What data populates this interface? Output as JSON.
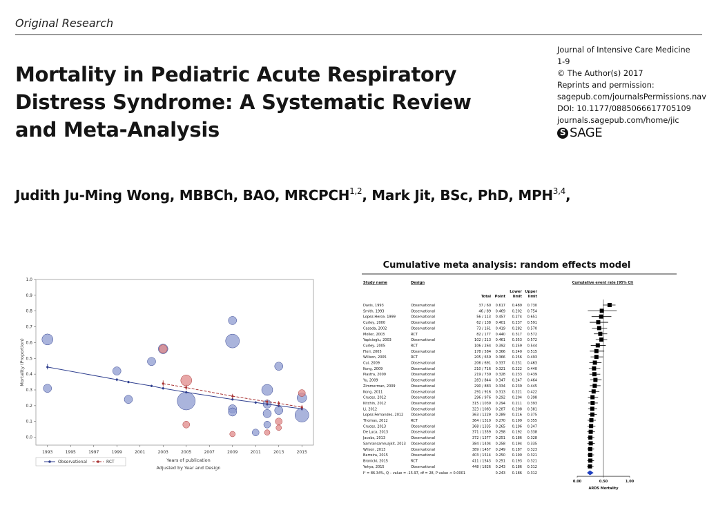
{
  "header": {
    "section_label": "Original Research",
    "title": "Mortality in Pediatric Acute Respiratory Distress Syndrome: A Systematic Review and Meta-Analysis"
  },
  "journal_info": {
    "lines": [
      "Journal of Intensive Care Medicine",
      "1-9",
      "© The Author(s) 2017",
      "Reprints and permission:",
      "sagepub.com/journalsPermissions.nav",
      "DOI: 10.1177/0885066617705109",
      "journals.sagepub.com/home/jic"
    ],
    "publisher": "SAGE"
  },
  "authors": {
    "author1_name": "Judith Ju-Ming Wong, MBBCh, BAO, MRCPCH",
    "author1_aff": "1,2",
    "sep1": ", ",
    "author2_name": "Mark Jit, BSc, PhD, MPH",
    "author2_aff": "3,4",
    "sep2": ","
  },
  "chart_data": [
    {
      "type": "scatter",
      "title": "",
      "xlabel": "Years of publication",
      "xlabel2": "Adjusted by Year and Design",
      "ylabel": "Mortality (Proportion)",
      "xlim": [
        1992,
        2016
      ],
      "ylim": [
        -0.05,
        1.0
      ],
      "x_ticks": [
        1993,
        1995,
        1997,
        1999,
        2001,
        2003,
        2005,
        2007,
        2009,
        2011,
        2013,
        2015
      ],
      "y_ticks": [
        0.0,
        0.1,
        0.2,
        0.3,
        0.4,
        0.5,
        0.6,
        0.7,
        0.8,
        0.9,
        1.0
      ],
      "legend": [
        "Observational",
        "RCT"
      ],
      "colors": {
        "observational": "#2f3f8f",
        "observational_fill": "#8e9bd0",
        "rct": "#a83232",
        "rct_fill": "#e08a8a"
      },
      "observational_points": [
        {
          "x": 1993,
          "y": 0.62,
          "size": 8
        },
        {
          "x": 1993,
          "y": 0.31,
          "size": 6
        },
        {
          "x": 1999,
          "y": 0.42,
          "size": 6
        },
        {
          "x": 2000,
          "y": 0.24,
          "size": 6
        },
        {
          "x": 2002,
          "y": 0.48,
          "size": 6
        },
        {
          "x": 2003,
          "y": 0.56,
          "size": 7
        },
        {
          "x": 2005,
          "y": 0.23,
          "size": 13
        },
        {
          "x": 2009,
          "y": 0.74,
          "size": 6
        },
        {
          "x": 2009,
          "y": 0.61,
          "size": 10
        },
        {
          "x": 2009,
          "y": 0.18,
          "size": 6
        },
        {
          "x": 2009,
          "y": 0.16,
          "size": 6
        },
        {
          "x": 2011,
          "y": 0.03,
          "size": 5
        },
        {
          "x": 2012,
          "y": 0.3,
          "size": 8
        },
        {
          "x": 2012,
          "y": 0.21,
          "size": 6
        },
        {
          "x": 2012,
          "y": 0.15,
          "size": 6
        },
        {
          "x": 2012,
          "y": 0.08,
          "size": 5
        },
        {
          "x": 2013,
          "y": 0.45,
          "size": 6
        },
        {
          "x": 2013,
          "y": 0.17,
          "size": 6
        },
        {
          "x": 2015,
          "y": 0.25,
          "size": 7
        },
        {
          "x": 2015,
          "y": 0.14,
          "size": 10
        }
      ],
      "rct_points": [
        {
          "x": 2003,
          "y": 0.56,
          "size": 6
        },
        {
          "x": 2005,
          "y": 0.36,
          "size": 8
        },
        {
          "x": 2005,
          "y": 0.08,
          "size": 5
        },
        {
          "x": 2009,
          "y": 0.02,
          "size": 4
        },
        {
          "x": 2012,
          "y": 0.03,
          "size": 4
        },
        {
          "x": 2013,
          "y": 0.1,
          "size": 5
        },
        {
          "x": 2013,
          "y": 0.06,
          "size": 4
        },
        {
          "x": 2015,
          "y": 0.28,
          "size": 5
        }
      ],
      "observational_fit": [
        {
          "x": 1993,
          "y": 0.445,
          "lo": 0.43,
          "hi": 0.465
        },
        {
          "x": 1999,
          "y": 0.365,
          "lo": 0.355,
          "hi": 0.375
        },
        {
          "x": 2000,
          "y": 0.35,
          "lo": 0.342,
          "hi": 0.358
        },
        {
          "x": 2002,
          "y": 0.325,
          "lo": 0.318,
          "hi": 0.333
        },
        {
          "x": 2003,
          "y": 0.31,
          "lo": 0.302,
          "hi": 0.318
        },
        {
          "x": 2005,
          "y": 0.285,
          "lo": 0.278,
          "hi": 0.292
        },
        {
          "x": 2009,
          "y": 0.24,
          "lo": 0.232,
          "hi": 0.248
        },
        {
          "x": 2011,
          "y": 0.22,
          "lo": 0.212,
          "hi": 0.228
        },
        {
          "x": 2012,
          "y": 0.21,
          "lo": 0.2,
          "hi": 0.22
        },
        {
          "x": 2013,
          "y": 0.2,
          "lo": 0.19,
          "hi": 0.21
        },
        {
          "x": 2015,
          "y": 0.18,
          "lo": 0.168,
          "hi": 0.192
        }
      ],
      "rct_fit": [
        {
          "x": 2003,
          "y": 0.34,
          "lo": 0.32,
          "hi": 0.36
        },
        {
          "x": 2005,
          "y": 0.315,
          "lo": 0.298,
          "hi": 0.332
        },
        {
          "x": 2009,
          "y": 0.26,
          "lo": 0.245,
          "hi": 0.275
        },
        {
          "x": 2012,
          "y": 0.225,
          "lo": 0.21,
          "hi": 0.24
        },
        {
          "x": 2013,
          "y": 0.215,
          "lo": 0.2,
          "hi": 0.23
        },
        {
          "x": 2015,
          "y": 0.19,
          "lo": 0.175,
          "hi": 0.205
        }
      ]
    },
    {
      "type": "table",
      "title": "Cumulative meta analysis: random effects model",
      "columns": [
        "Study name",
        "Design",
        "Total",
        "Point",
        "Lower limit",
        "Upper limit"
      ],
      "plot_header": "Cumulative event rate (95% CI)",
      "xlabel": "ARDS Mortality",
      "x_ticks": [
        0.0,
        0.5,
        1.0
      ],
      "x_tick_labels": [
        "0.00",
        "0.50",
        "1.00"
      ],
      "rows": [
        {
          "study": "Davis, 1993",
          "design": "Observational",
          "total": "37 / 60",
          "point": 0.617,
          "lower": 0.489,
          "upper": 0.73
        },
        {
          "study": "Smith, 1993",
          "design": "Observational",
          "total": "46 / 89",
          "point": 0.469,
          "lower": 0.202,
          "upper": 0.754
        },
        {
          "study": "Lopez-Herce, 1999",
          "design": "Observational",
          "total": "56 / 113",
          "point": 0.457,
          "lower": 0.274,
          "upper": 0.651
        },
        {
          "study": "Curley, 2000",
          "design": "Observational",
          "total": "62 / 138",
          "point": 0.401,
          "lower": 0.237,
          "upper": 0.591
        },
        {
          "study": "Casada, 2002",
          "design": "Observational",
          "total": "73 / 161",
          "point": 0.419,
          "lower": 0.282,
          "upper": 0.57
        },
        {
          "study": "Moller, 2003",
          "design": "RCT",
          "total": "82 / 177",
          "point": 0.44,
          "lower": 0.317,
          "upper": 0.572
        },
        {
          "study": "Yapicioglu, 2003",
          "design": "Observational",
          "total": "102 / 213",
          "point": 0.461,
          "lower": 0.353,
          "upper": 0.572
        },
        {
          "study": "Curley, 2005",
          "design": "RCT",
          "total": "106 / 264",
          "point": 0.392,
          "lower": 0.259,
          "upper": 0.544
        },
        {
          "study": "Flori, 2005",
          "design": "Observational",
          "total": "178 / 584",
          "point": 0.366,
          "lower": 0.24,
          "upper": 0.515
        },
        {
          "study": "Willson, 2005",
          "design": "RCT",
          "total": "205 / 659",
          "point": 0.366,
          "lower": 0.256,
          "upper": 0.493
        },
        {
          "study": "Cui, 2009",
          "design": "Observational",
          "total": "206 / 691",
          "point": 0.337,
          "lower": 0.231,
          "upper": 0.463
        },
        {
          "study": "Kong, 2009",
          "design": "Observational",
          "total": "210 / 716",
          "point": 0.321,
          "lower": 0.222,
          "upper": 0.44
        },
        {
          "study": "Piastra, 2009",
          "design": "Observational",
          "total": "219 / 739",
          "point": 0.328,
          "lower": 0.233,
          "upper": 0.439
        },
        {
          "study": "Yu, 2009",
          "design": "Observational",
          "total": "283 / 844",
          "point": 0.347,
          "lower": 0.247,
          "upper": 0.464
        },
        {
          "study": "Zimmerman, 2009",
          "design": "Observational",
          "total": "290 / 883",
          "point": 0.334,
          "lower": 0.239,
          "upper": 0.445
        },
        {
          "study": "Kong, 2011",
          "design": "Observational",
          "total": "291 / 916",
          "point": 0.313,
          "lower": 0.221,
          "upper": 0.422
        },
        {
          "study": "Cruces, 2012",
          "design": "Observational",
          "total": "296 / 976",
          "point": 0.292,
          "lower": 0.204,
          "upper": 0.398
        },
        {
          "study": "Kitchin, 2012",
          "design": "Observational",
          "total": "315 / 1039",
          "point": 0.294,
          "lower": 0.211,
          "upper": 0.393
        },
        {
          "study": "Li, 2012",
          "design": "Observational",
          "total": "323 / 1083",
          "point": 0.287,
          "lower": 0.208,
          "upper": 0.381
        },
        {
          "study": "Lopez-Fernandes, 2012",
          "design": "Observational",
          "total": "363 / 1229",
          "point": 0.289,
          "lower": 0.216,
          "upper": 0.375
        },
        {
          "study": "Thomas, 2012",
          "design": "RCT",
          "total": "364 / 1310",
          "point": 0.27,
          "lower": 0.199,
          "upper": 0.355
        },
        {
          "study": "Cruces, 2013",
          "design": "Observational",
          "total": "368 / 1335",
          "point": 0.265,
          "lower": 0.196,
          "upper": 0.347
        },
        {
          "study": "De Luca, 2013",
          "design": "Observational",
          "total": "371 / 1359",
          "point": 0.258,
          "lower": 0.192,
          "upper": 0.338
        },
        {
          "study": "Jacobs, 2013",
          "design": "Observational",
          "total": "372 / 1377",
          "point": 0.251,
          "lower": 0.186,
          "upper": 0.328
        },
        {
          "study": "Samransamruajkit, 2013",
          "design": "Observational",
          "total": "384 / 1404",
          "point": 0.258,
          "lower": 0.194,
          "upper": 0.335
        },
        {
          "study": "Wilson, 2013",
          "design": "Observational",
          "total": "389 / 1457",
          "point": 0.249,
          "lower": 0.187,
          "upper": 0.323
        },
        {
          "study": "Barreira, 2015",
          "design": "Observational",
          "total": "403 / 1514",
          "point": 0.25,
          "lower": 0.19,
          "upper": 0.321
        },
        {
          "study": "Bronicki, 2015",
          "design": "RCT",
          "total": "411 / 1543",
          "point": 0.251,
          "lower": 0.193,
          "upper": 0.321
        },
        {
          "study": "Yehya, 2015",
          "design": "Observational",
          "total": "448 / 1826",
          "point": 0.243,
          "lower": 0.186,
          "upper": 0.312
        }
      ],
      "summary": {
        "text": "I² = 86.34%, Q – value = -15.97, df = 28, P value < 0.0001",
        "point": 0.243,
        "lower": 0.186,
        "upper": 0.312
      },
      "colors": {
        "marker": "#000000",
        "diamond": "#1f3fbf"
      }
    }
  ]
}
